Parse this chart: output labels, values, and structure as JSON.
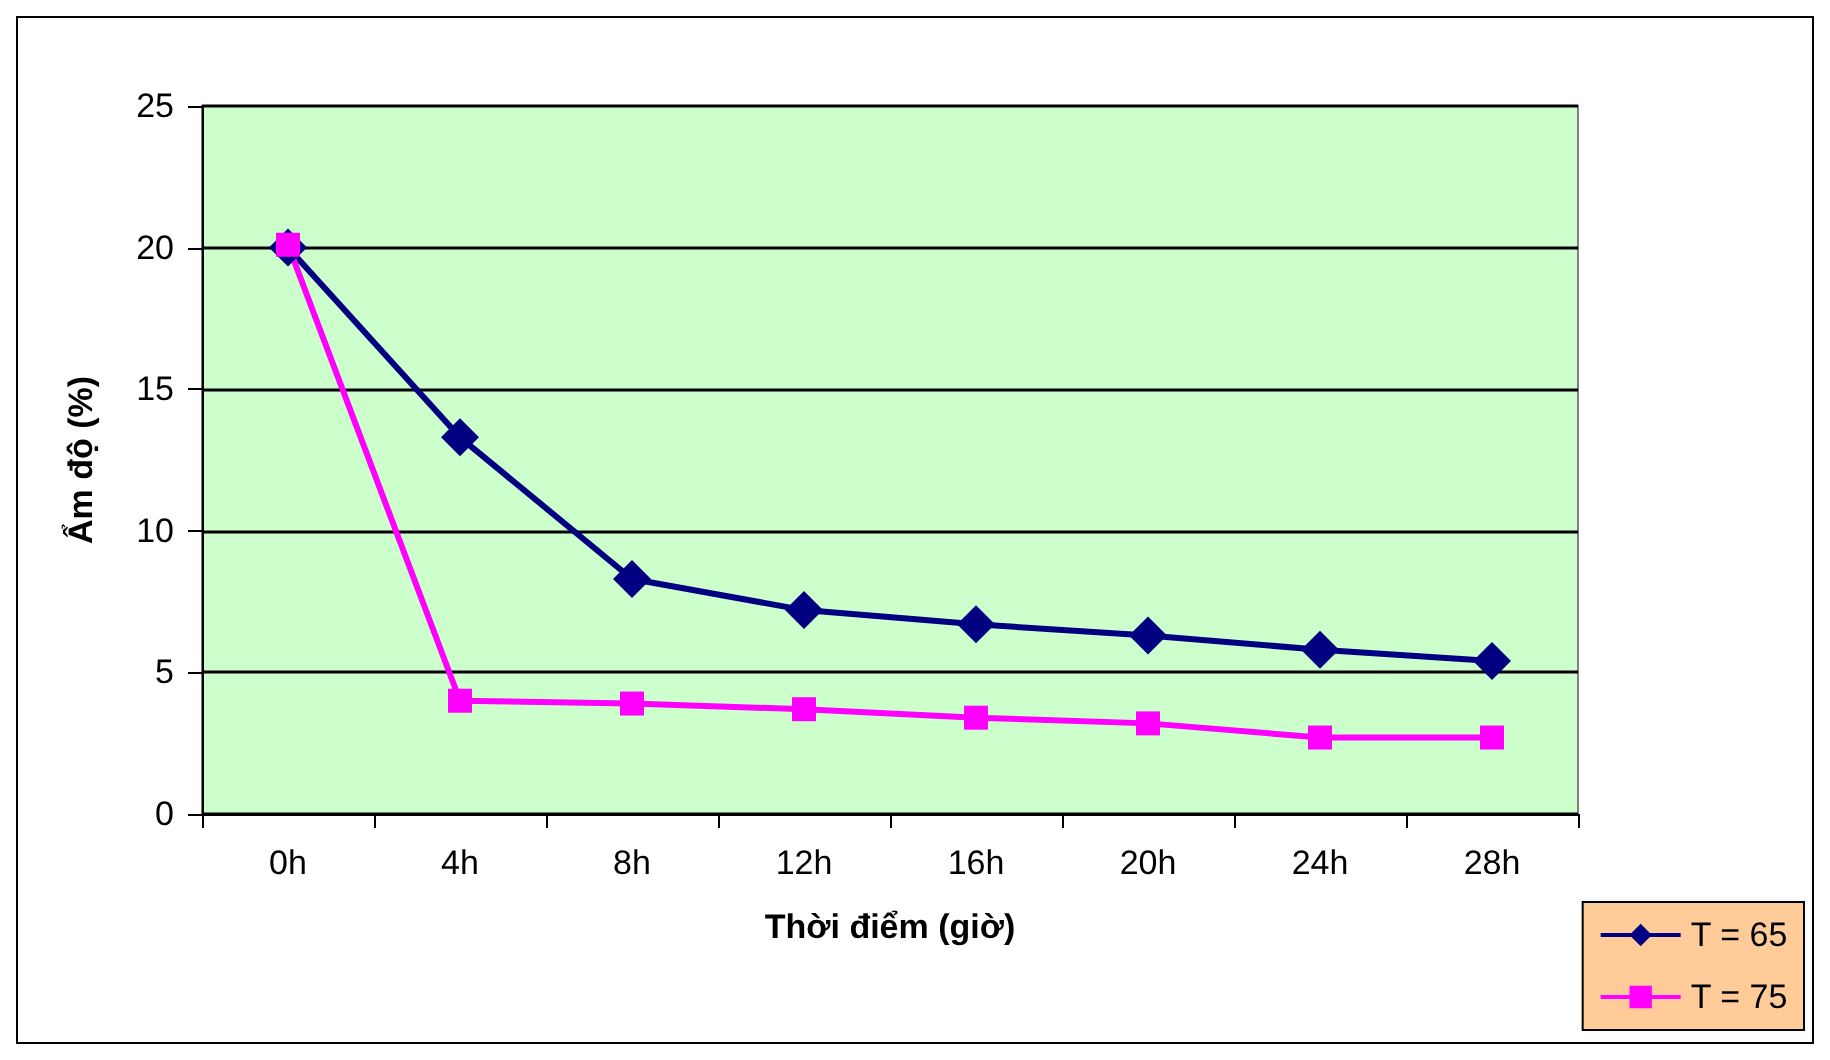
{
  "chart_data": {
    "type": "line",
    "xlabel": "Thời điểm (giờ)",
    "ylabel": "Ẩm độ (%)",
    "categories": [
      "0h",
      "4h",
      "8h",
      "12h",
      "16h",
      "20h",
      "24h",
      "28h"
    ],
    "series": [
      {
        "name": "T = 65",
        "color": "#000080",
        "marker": "diamond",
        "values": [
          20.0,
          13.3,
          8.3,
          7.2,
          6.7,
          6.3,
          5.8,
          5.4
        ]
      },
      {
        "name": "T = 75",
        "color": "#ff00ff",
        "marker": "square",
        "values": [
          20.1,
          4.0,
          3.9,
          3.7,
          3.4,
          3.2,
          2.7,
          2.7
        ]
      }
    ],
    "ylim": [
      0,
      25
    ],
    "yticks": [
      0,
      5,
      10,
      15,
      20,
      25
    ],
    "grid": "y",
    "legend": "bottom right",
    "line_style": "solid"
  }
}
